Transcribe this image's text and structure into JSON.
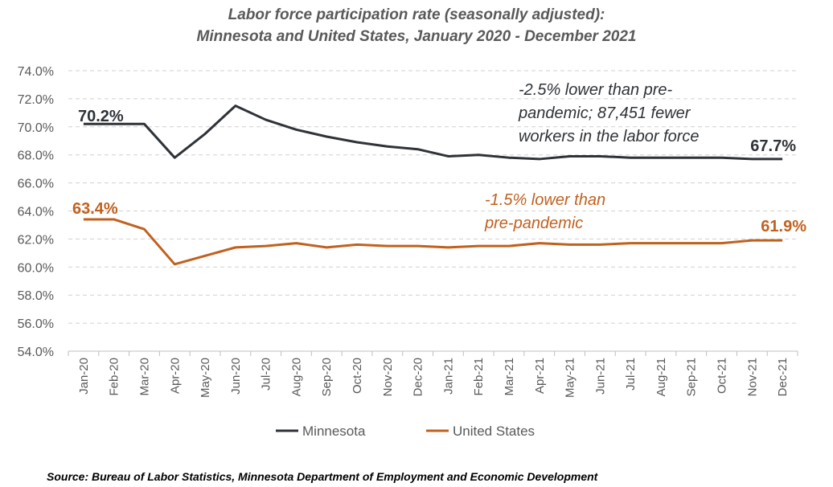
{
  "chart_data": {
    "type": "line",
    "title": [
      "Labor force participation rate (seasonally adjusted):",
      "Minnesota and United States, January 2020 - December 2021"
    ],
    "categories": [
      "Jan-20",
      "Feb-20",
      "Mar-20",
      "Apr-20",
      "May-20",
      "Jun-20",
      "Jul-20",
      "Aug-20",
      "Sep-20",
      "Oct-20",
      "Nov-20",
      "Dec-20",
      "Jan-21",
      "Feb-21",
      "Mar-21",
      "Apr-21",
      "May-21",
      "Jun-21",
      "Jul-21",
      "Aug-21",
      "Sep-21",
      "Oct-21",
      "Nov-21",
      "Dec-21"
    ],
    "ylim": [
      54,
      74
    ],
    "yticks": [
      "54.0%",
      "56.0%",
      "58.0%",
      "60.0%",
      "62.0%",
      "64.0%",
      "66.0%",
      "68.0%",
      "70.0%",
      "72.0%",
      "74.0%"
    ],
    "grid": true,
    "legend_position": "bottom",
    "series": [
      {
        "name": "Minnesota",
        "color": "#2f3337",
        "values": [
          70.2,
          70.2,
          70.2,
          67.8,
          69.5,
          71.5,
          70.5,
          69.8,
          69.3,
          68.9,
          68.6,
          68.4,
          67.9,
          68.0,
          67.8,
          67.7,
          67.9,
          67.9,
          67.8,
          67.8,
          67.8,
          67.8,
          67.7,
          67.7
        ],
        "labels": [
          "70.2%",
          "67.7%"
        ],
        "annotation": [
          "-2.5% lower than pre-",
          "pandemic; 87,451 fewer",
          "workers in the labor force"
        ]
      },
      {
        "name": "United States",
        "color": "#c0611f",
        "values": [
          63.4,
          63.4,
          62.7,
          60.2,
          60.8,
          61.4,
          61.5,
          61.7,
          61.4,
          61.6,
          61.5,
          61.5,
          61.4,
          61.5,
          61.5,
          61.7,
          61.6,
          61.6,
          61.7,
          61.7,
          61.7,
          61.7,
          61.9,
          61.9
        ],
        "labels": [
          "63.4%",
          "61.9%"
        ],
        "annotation": [
          "-1.5% lower than",
          "pre-pandemic"
        ]
      }
    ]
  },
  "source": "Source: Bureau of Labor Statistics, Minnesota Department of Employment and Economic Development"
}
